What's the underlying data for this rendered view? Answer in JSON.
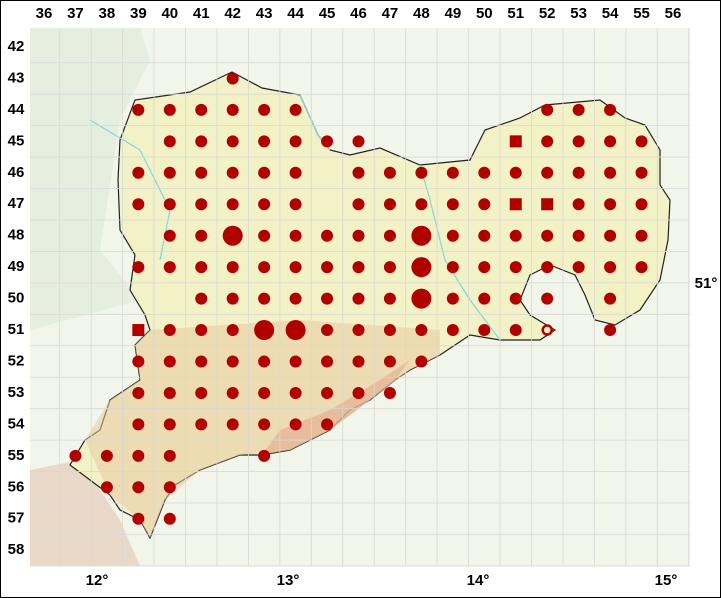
{
  "columns": [
    "36",
    "37",
    "38",
    "39",
    "40",
    "41",
    "42",
    "43",
    "44",
    "45",
    "46",
    "47",
    "48",
    "49",
    "50",
    "51",
    "52",
    "53",
    "54",
    "55",
    "56"
  ],
  "rows": [
    "42",
    "43",
    "44",
    "45",
    "46",
    "47",
    "48",
    "49",
    "50",
    "51",
    "52",
    "53",
    "54",
    "55",
    "56",
    "57",
    "58"
  ],
  "longitudes": [
    "12°",
    "13°",
    "14°",
    "15°"
  ],
  "latitude": "51°",
  "records": [
    {
      "col": "42",
      "row": "43",
      "symbol": "dot"
    },
    {
      "col": "39",
      "row": "44",
      "symbol": "dot"
    },
    {
      "col": "40",
      "row": "44",
      "symbol": "dot"
    },
    {
      "col": "41",
      "row": "44",
      "symbol": "dot"
    },
    {
      "col": "42",
      "row": "44",
      "symbol": "dot"
    },
    {
      "col": "43",
      "row": "44",
      "symbol": "dot"
    },
    {
      "col": "44",
      "row": "44",
      "symbol": "dot"
    },
    {
      "col": "52",
      "row": "44",
      "symbol": "dot"
    },
    {
      "col": "53",
      "row": "44",
      "symbol": "dot"
    },
    {
      "col": "54",
      "row": "44",
      "symbol": "dot"
    },
    {
      "col": "40",
      "row": "45",
      "symbol": "dot"
    },
    {
      "col": "41",
      "row": "45",
      "symbol": "dot"
    },
    {
      "col": "42",
      "row": "45",
      "symbol": "dot"
    },
    {
      "col": "43",
      "row": "45",
      "symbol": "dot"
    },
    {
      "col": "44",
      "row": "45",
      "symbol": "dot"
    },
    {
      "col": "45",
      "row": "45",
      "symbol": "dot"
    },
    {
      "col": "46",
      "row": "45",
      "symbol": "dot"
    },
    {
      "col": "51",
      "row": "45",
      "symbol": "square"
    },
    {
      "col": "52",
      "row": "45",
      "symbol": "dot"
    },
    {
      "col": "53",
      "row": "45",
      "symbol": "dot"
    },
    {
      "col": "54",
      "row": "45",
      "symbol": "dot"
    },
    {
      "col": "55",
      "row": "45",
      "symbol": "dot"
    },
    {
      "col": "39",
      "row": "46",
      "symbol": "dot"
    },
    {
      "col": "40",
      "row": "46",
      "symbol": "dot"
    },
    {
      "col": "41",
      "row": "46",
      "symbol": "dot"
    },
    {
      "col": "42",
      "row": "46",
      "symbol": "dot"
    },
    {
      "col": "43",
      "row": "46",
      "symbol": "dot"
    },
    {
      "col": "44",
      "row": "46",
      "symbol": "dot"
    },
    {
      "col": "46",
      "row": "46",
      "symbol": "dot"
    },
    {
      "col": "47",
      "row": "46",
      "symbol": "dot"
    },
    {
      "col": "48",
      "row": "46",
      "symbol": "dot"
    },
    {
      "col": "49",
      "row": "46",
      "symbol": "dot"
    },
    {
      "col": "50",
      "row": "46",
      "symbol": "dot"
    },
    {
      "col": "51",
      "row": "46",
      "symbol": "dot"
    },
    {
      "col": "52",
      "row": "46",
      "symbol": "dot"
    },
    {
      "col": "53",
      "row": "46",
      "symbol": "dot"
    },
    {
      "col": "54",
      "row": "46",
      "symbol": "dot"
    },
    {
      "col": "55",
      "row": "46",
      "symbol": "dot"
    },
    {
      "col": "39",
      "row": "47",
      "symbol": "dot"
    },
    {
      "col": "40",
      "row": "47",
      "symbol": "dot"
    },
    {
      "col": "41",
      "row": "47",
      "symbol": "dot"
    },
    {
      "col": "42",
      "row": "47",
      "symbol": "dot"
    },
    {
      "col": "43",
      "row": "47",
      "symbol": "dot"
    },
    {
      "col": "44",
      "row": "47",
      "symbol": "dot"
    },
    {
      "col": "46",
      "row": "47",
      "symbol": "dot"
    },
    {
      "col": "47",
      "row": "47",
      "symbol": "dot"
    },
    {
      "col": "48",
      "row": "47",
      "symbol": "dot"
    },
    {
      "col": "49",
      "row": "47",
      "symbol": "dot"
    },
    {
      "col": "50",
      "row": "47",
      "symbol": "dot"
    },
    {
      "col": "51",
      "row": "47",
      "symbol": "square"
    },
    {
      "col": "52",
      "row": "47",
      "symbol": "square"
    },
    {
      "col": "53",
      "row": "47",
      "symbol": "dot"
    },
    {
      "col": "54",
      "row": "47",
      "symbol": "dot"
    },
    {
      "col": "55",
      "row": "47",
      "symbol": "dot"
    },
    {
      "col": "40",
      "row": "48",
      "symbol": "dot"
    },
    {
      "col": "41",
      "row": "48",
      "symbol": "dot"
    },
    {
      "col": "42",
      "row": "48",
      "symbol": "large"
    },
    {
      "col": "43",
      "row": "48",
      "symbol": "dot"
    },
    {
      "col": "44",
      "row": "48",
      "symbol": "dot"
    },
    {
      "col": "45",
      "row": "48",
      "symbol": "dot"
    },
    {
      "col": "46",
      "row": "48",
      "symbol": "dot"
    },
    {
      "col": "47",
      "row": "48",
      "symbol": "dot"
    },
    {
      "col": "48",
      "row": "48",
      "symbol": "large"
    },
    {
      "col": "49",
      "row": "48",
      "symbol": "dot"
    },
    {
      "col": "50",
      "row": "48",
      "symbol": "dot"
    },
    {
      "col": "51",
      "row": "48",
      "symbol": "dot"
    },
    {
      "col": "52",
      "row": "48",
      "symbol": "dot"
    },
    {
      "col": "53",
      "row": "48",
      "symbol": "dot"
    },
    {
      "col": "54",
      "row": "48",
      "symbol": "dot"
    },
    {
      "col": "55",
      "row": "48",
      "symbol": "dot"
    },
    {
      "col": "39",
      "row": "49",
      "symbol": "dot"
    },
    {
      "col": "40",
      "row": "49",
      "symbol": "dot"
    },
    {
      "col": "41",
      "row": "49",
      "symbol": "dot"
    },
    {
      "col": "42",
      "row": "49",
      "symbol": "dot"
    },
    {
      "col": "43",
      "row": "49",
      "symbol": "dot"
    },
    {
      "col": "44",
      "row": "49",
      "symbol": "dot"
    },
    {
      "col": "45",
      "row": "49",
      "symbol": "dot"
    },
    {
      "col": "46",
      "row": "49",
      "symbol": "dot"
    },
    {
      "col": "47",
      "row": "49",
      "symbol": "dot"
    },
    {
      "col": "48",
      "row": "49",
      "symbol": "large"
    },
    {
      "col": "49",
      "row": "49",
      "symbol": "dot"
    },
    {
      "col": "50",
      "row": "49",
      "symbol": "dot"
    },
    {
      "col": "51",
      "row": "49",
      "symbol": "dot"
    },
    {
      "col": "52",
      "row": "49",
      "symbol": "dot"
    },
    {
      "col": "53",
      "row": "49",
      "symbol": "dot"
    },
    {
      "col": "54",
      "row": "49",
      "symbol": "dot"
    },
    {
      "col": "55",
      "row": "49",
      "symbol": "dot"
    },
    {
      "col": "41",
      "row": "50",
      "symbol": "dot"
    },
    {
      "col": "42",
      "row": "50",
      "symbol": "dot"
    },
    {
      "col": "43",
      "row": "50",
      "symbol": "dot"
    },
    {
      "col": "44",
      "row": "50",
      "symbol": "dot"
    },
    {
      "col": "45",
      "row": "50",
      "symbol": "dot"
    },
    {
      "col": "46",
      "row": "50",
      "symbol": "dot"
    },
    {
      "col": "47",
      "row": "50",
      "symbol": "dot"
    },
    {
      "col": "48",
      "row": "50",
      "symbol": "large"
    },
    {
      "col": "49",
      "row": "50",
      "symbol": "dot"
    },
    {
      "col": "50",
      "row": "50",
      "symbol": "dot"
    },
    {
      "col": "51",
      "row": "50",
      "symbol": "dot"
    },
    {
      "col": "52",
      "row": "50",
      "symbol": "dot"
    },
    {
      "col": "54",
      "row": "50",
      "symbol": "dot"
    },
    {
      "col": "39",
      "row": "51",
      "symbol": "square"
    },
    {
      "col": "40",
      "row": "51",
      "symbol": "dot"
    },
    {
      "col": "41",
      "row": "51",
      "symbol": "dot"
    },
    {
      "col": "42",
      "row": "51",
      "symbol": "dot"
    },
    {
      "col": "43",
      "row": "51",
      "symbol": "large"
    },
    {
      "col": "44",
      "row": "51",
      "symbol": "large"
    },
    {
      "col": "45",
      "row": "51",
      "symbol": "dot"
    },
    {
      "col": "46",
      "row": "51",
      "symbol": "dot"
    },
    {
      "col": "47",
      "row": "51",
      "symbol": "dot"
    },
    {
      "col": "48",
      "row": "51",
      "symbol": "dot"
    },
    {
      "col": "49",
      "row": "51",
      "symbol": "dot"
    },
    {
      "col": "50",
      "row": "51",
      "symbol": "dot"
    },
    {
      "col": "51",
      "row": "51",
      "symbol": "dot"
    },
    {
      "col": "52",
      "row": "51",
      "symbol": "ring"
    },
    {
      "col": "54",
      "row": "51",
      "symbol": "dot"
    },
    {
      "col": "39",
      "row": "52",
      "symbol": "dot"
    },
    {
      "col": "40",
      "row": "52",
      "symbol": "dot"
    },
    {
      "col": "41",
      "row": "52",
      "symbol": "dot"
    },
    {
      "col": "42",
      "row": "52",
      "symbol": "dot"
    },
    {
      "col": "43",
      "row": "52",
      "symbol": "dot"
    },
    {
      "col": "44",
      "row": "52",
      "symbol": "dot"
    },
    {
      "col": "45",
      "row": "52",
      "symbol": "dot"
    },
    {
      "col": "46",
      "row": "52",
      "symbol": "dot"
    },
    {
      "col": "47",
      "row": "52",
      "symbol": "dot"
    },
    {
      "col": "48",
      "row": "52",
      "symbol": "dot"
    },
    {
      "col": "39",
      "row": "53",
      "symbol": "dot"
    },
    {
      "col": "40",
      "row": "53",
      "symbol": "dot"
    },
    {
      "col": "41",
      "row": "53",
      "symbol": "dot"
    },
    {
      "col": "42",
      "row": "53",
      "symbol": "dot"
    },
    {
      "col": "43",
      "row": "53",
      "symbol": "dot"
    },
    {
      "col": "44",
      "row": "53",
      "symbol": "dot"
    },
    {
      "col": "45",
      "row": "53",
      "symbol": "dot"
    },
    {
      "col": "46",
      "row": "53",
      "symbol": "dot"
    },
    {
      "col": "47",
      "row": "53",
      "symbol": "dot"
    },
    {
      "col": "39",
      "row": "54",
      "symbol": "dot"
    },
    {
      "col": "40",
      "row": "54",
      "symbol": "dot"
    },
    {
      "col": "41",
      "row": "54",
      "symbol": "dot"
    },
    {
      "col": "42",
      "row": "54",
      "symbol": "dot"
    },
    {
      "col": "43",
      "row": "54",
      "symbol": "dot"
    },
    {
      "col": "44",
      "row": "54",
      "symbol": "dot"
    },
    {
      "col": "45",
      "row": "54",
      "symbol": "dot"
    },
    {
      "col": "37",
      "row": "55",
      "symbol": "dot"
    },
    {
      "col": "38",
      "row": "55",
      "symbol": "dot"
    },
    {
      "col": "39",
      "row": "55",
      "symbol": "dot"
    },
    {
      "col": "40",
      "row": "55",
      "symbol": "dot"
    },
    {
      "col": "43",
      "row": "55",
      "symbol": "dot"
    },
    {
      "col": "38",
      "row": "56",
      "symbol": "dot"
    },
    {
      "col": "39",
      "row": "56",
      "symbol": "dot"
    },
    {
      "col": "40",
      "row": "56",
      "symbol": "dot"
    },
    {
      "col": "39",
      "row": "57",
      "symbol": "dot"
    },
    {
      "col": "40",
      "row": "57",
      "symbol": "dot"
    }
  ]
}
